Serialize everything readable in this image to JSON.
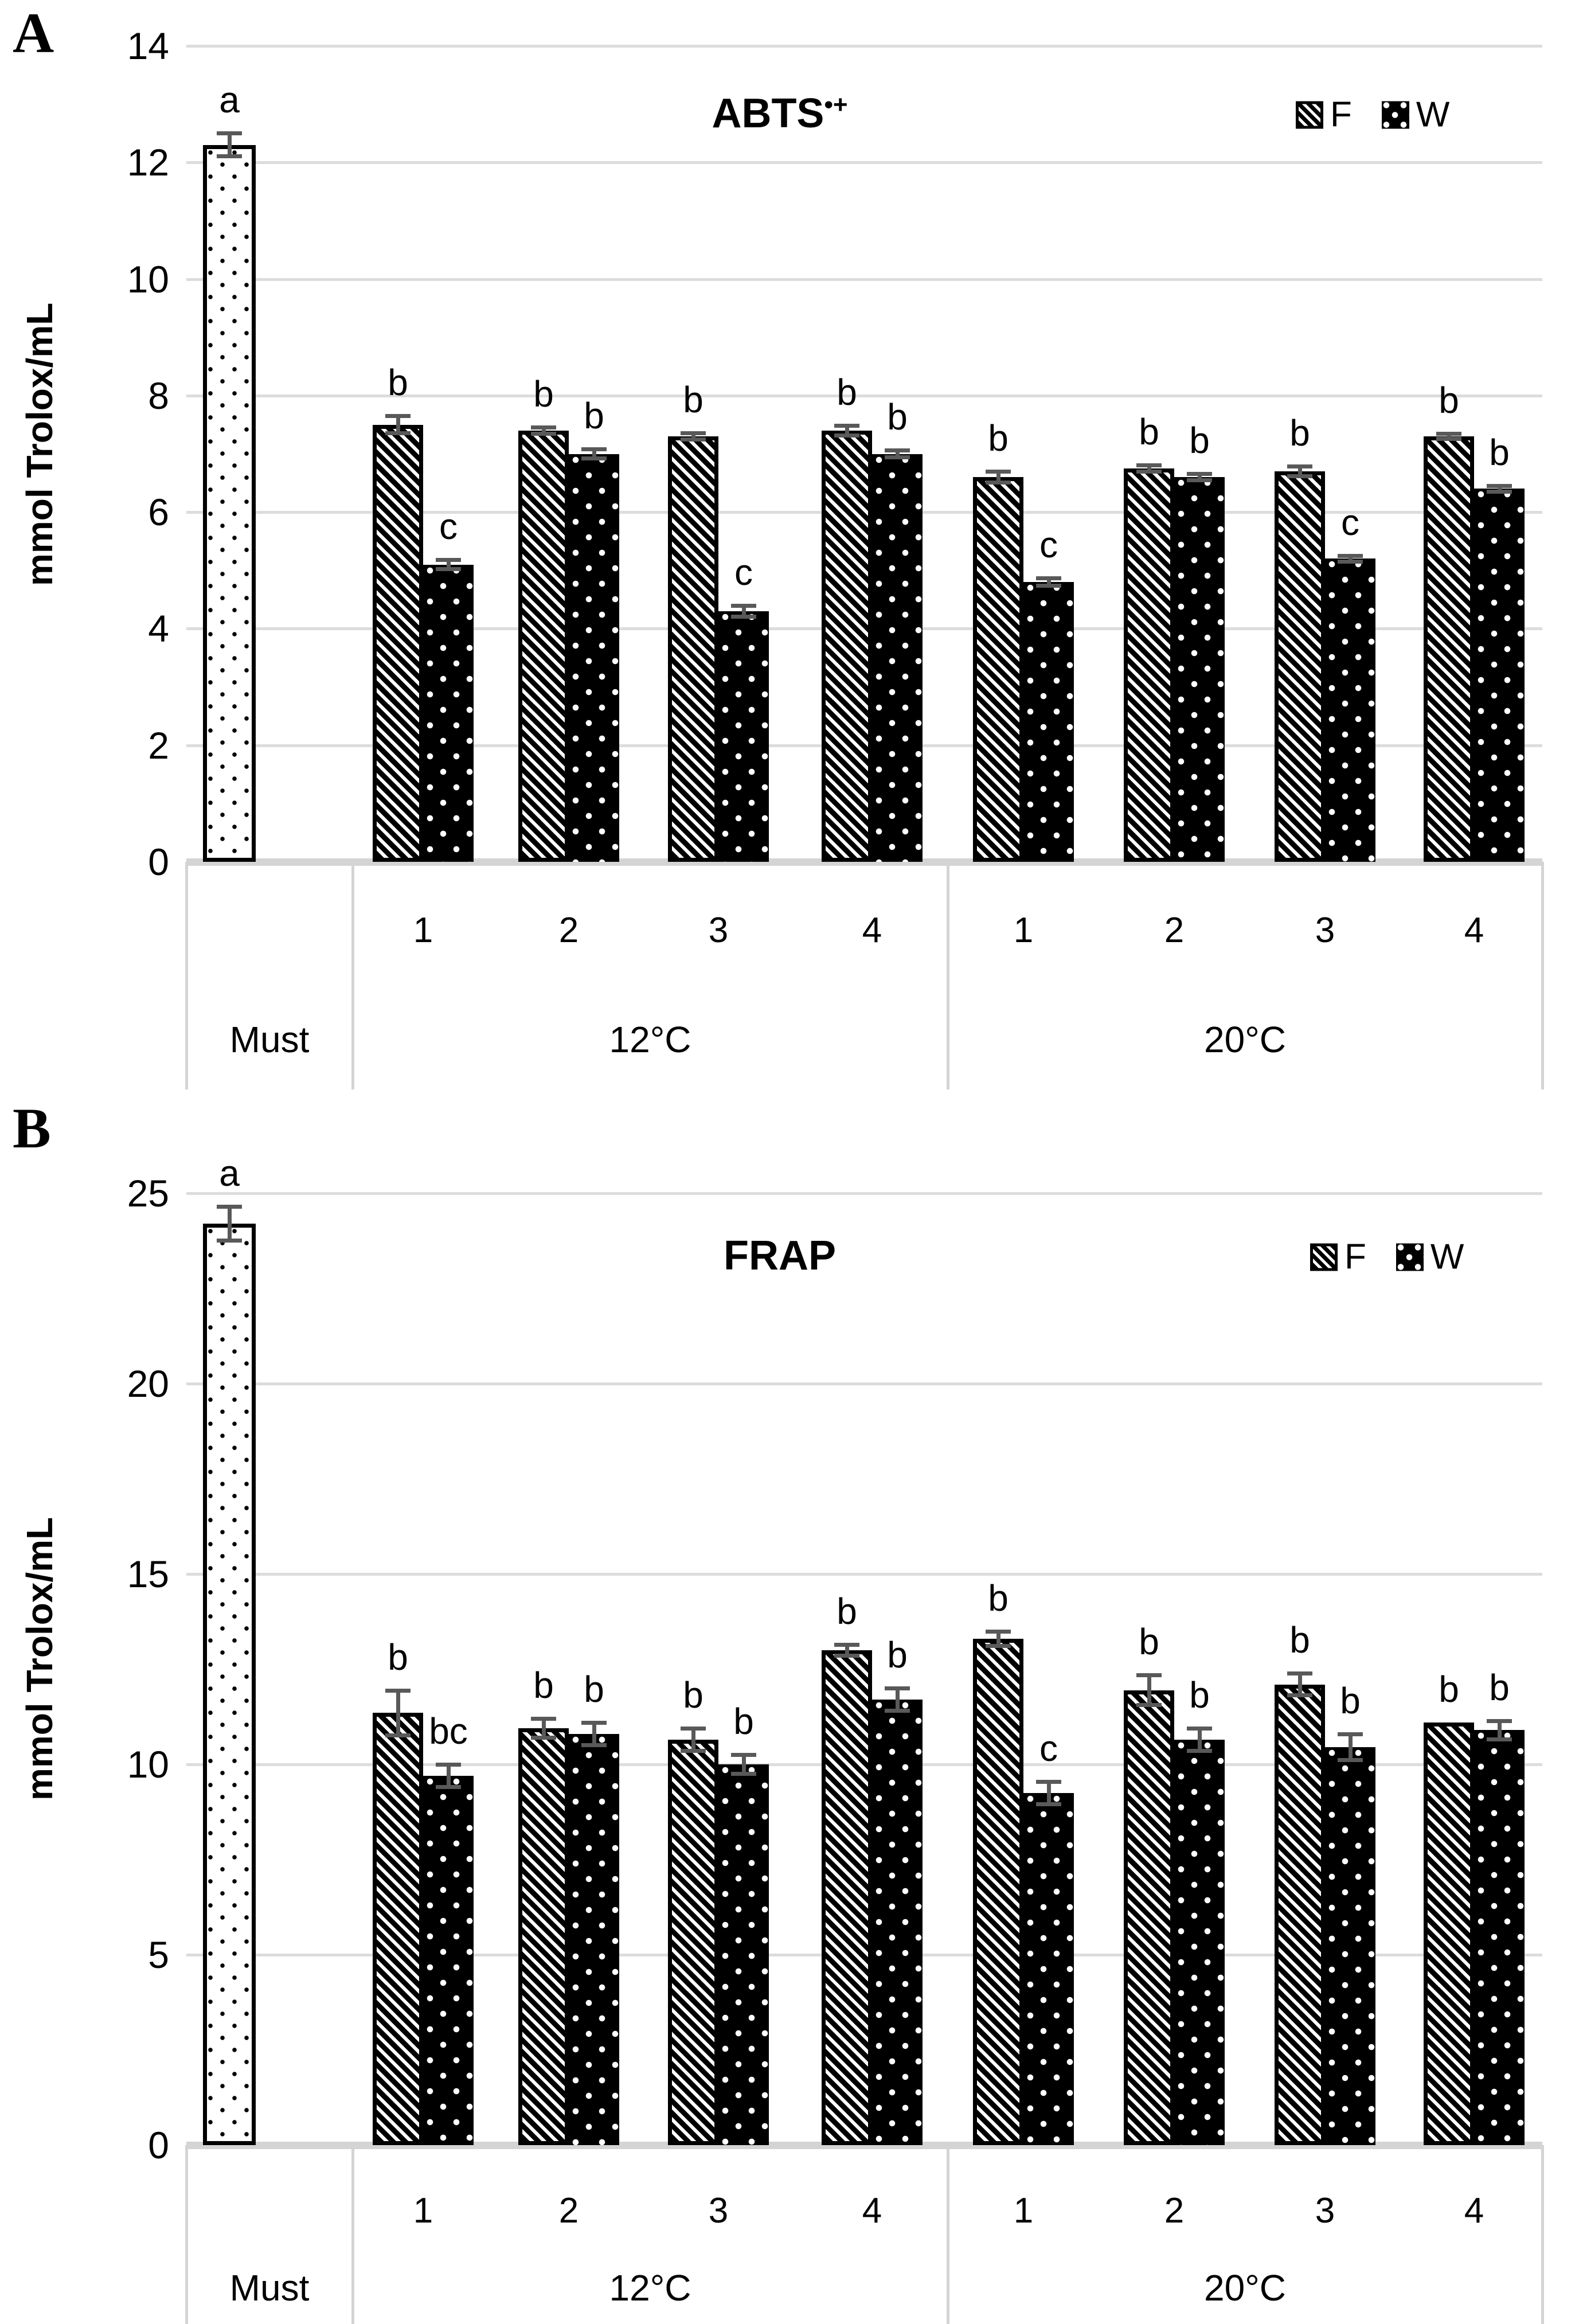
{
  "colors": {
    "bar_fill": "#000000",
    "background": "#ffffff",
    "error_bar": "#595959",
    "gridline": "#d9d9d9",
    "text": "#000000"
  },
  "chart_data": [
    {
      "type": "bar",
      "panel_label": "A",
      "title": "ABTS",
      "title_sup": "•+",
      "ylabel": "mmol Trolox/mL",
      "ylim": [
        0,
        14
      ],
      "yticks": [
        14,
        12,
        10,
        8,
        6,
        4,
        2,
        0
      ],
      "grid": true,
      "legend_position": "top-right",
      "legend": [
        {
          "label": "F",
          "pattern": "diagonal-hatch"
        },
        {
          "label": "W",
          "pattern": "black-with-white-dots"
        }
      ],
      "x": {
        "must": "Must",
        "sections": [
          {
            "label": "12°C",
            "categories": [
              "1",
              "2",
              "3",
              "4"
            ]
          },
          {
            "label": "20°C",
            "categories": [
              "1",
              "2",
              "3",
              "4"
            ]
          }
        ]
      },
      "must_bar": {
        "value": 12.3,
        "error": 0.2,
        "sig": "a",
        "pattern": "dotted-divot"
      },
      "series": [
        {
          "name": "F",
          "values": [
            7.5,
            7.4,
            7.3,
            7.4,
            6.6,
            6.75,
            6.7,
            7.3
          ],
          "errors": [
            0.15,
            0.06,
            0.06,
            0.09,
            0.1,
            0.06,
            0.09,
            0.05
          ],
          "sig": [
            "b",
            "b",
            "b",
            "b",
            "b",
            "b",
            "b",
            "b"
          ]
        },
        {
          "name": "W",
          "values": [
            5.1,
            7.0,
            4.3,
            7.0,
            4.8,
            6.6,
            5.2,
            6.4
          ],
          "errors": [
            0.08,
            0.08,
            0.1,
            0.06,
            0.07,
            0.06,
            0.05,
            0.05
          ],
          "sig": [
            "c",
            "b",
            "c",
            "b",
            "c",
            "b",
            "c",
            "b"
          ]
        }
      ]
    },
    {
      "type": "bar",
      "panel_label": "B",
      "title": "FRAP",
      "title_sup": "",
      "ylabel": "mmol Trolox/mL",
      "ylim": [
        0,
        25
      ],
      "yticks": [
        25,
        20,
        15,
        10,
        5,
        0
      ],
      "grid": true,
      "legend_position": "top-right",
      "legend": [
        {
          "label": "F",
          "pattern": "diagonal-hatch"
        },
        {
          "label": "W",
          "pattern": "black-with-white-dots"
        }
      ],
      "x": {
        "must": "Must",
        "sections": [
          {
            "label": "12°C",
            "categories": [
              "1",
              "2",
              "3",
              "4"
            ]
          },
          {
            "label": "20°C",
            "categories": [
              "1",
              "2",
              "3",
              "4"
            ]
          }
        ]
      },
      "must_bar": {
        "value": 24.2,
        "error": 0.45,
        "sig": "a",
        "pattern": "dotted-divot"
      },
      "series": [
        {
          "name": "F",
          "values": [
            11.35,
            10.95,
            10.65,
            13.0,
            13.3,
            11.95,
            12.1,
            11.1
          ],
          "errors": [
            0.6,
            0.25,
            0.3,
            0.15,
            0.2,
            0.4,
            0.3,
            0
          ],
          "sig": [
            "b",
            "b",
            "b",
            "b",
            "b",
            "b",
            "b",
            "b"
          ]
        },
        {
          "name": "W",
          "values": [
            9.7,
            10.8,
            10.0,
            11.7,
            9.25,
            10.65,
            10.45,
            10.9
          ],
          "errors": [
            0.3,
            0.3,
            0.25,
            0.3,
            0.3,
            0.3,
            0.35,
            0.25
          ],
          "sig": [
            "bc",
            "b",
            "b",
            "b",
            "c",
            "b",
            "b",
            "b"
          ]
        }
      ]
    }
  ]
}
